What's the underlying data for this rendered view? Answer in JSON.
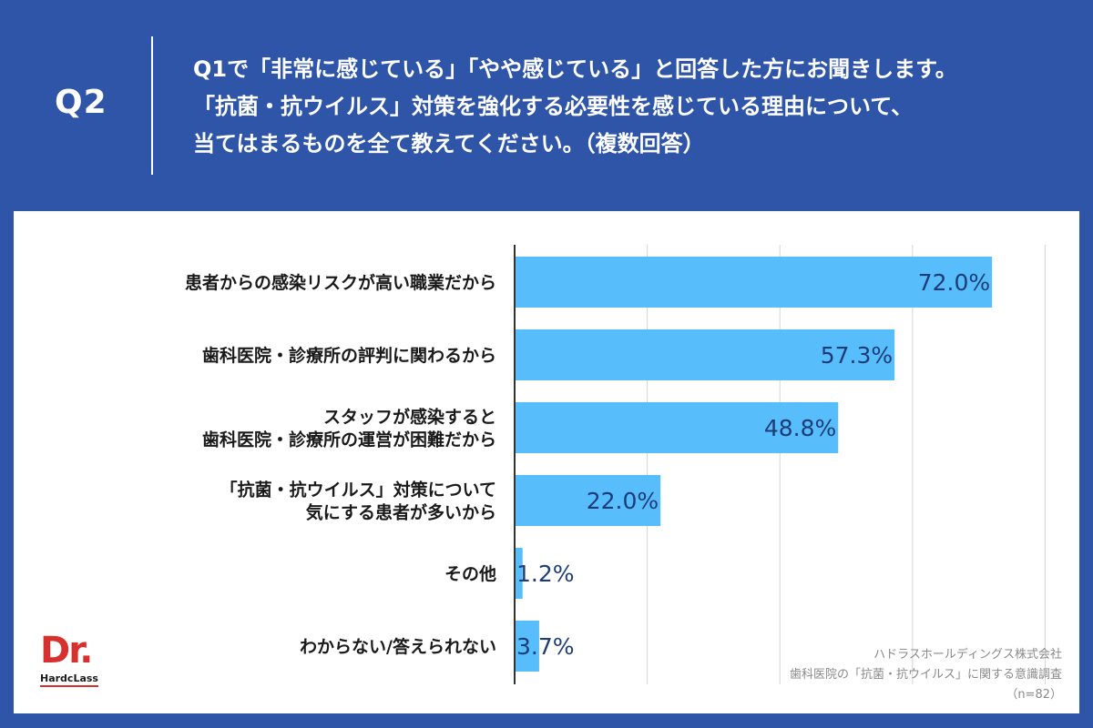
{
  "header": {
    "question_label": "Q2",
    "question_lines": [
      "Q1で「非常に感じている」「やや感じている」と回答した方にお聞きします。",
      "「抗菌・抗ウイルス」対策を強化する必要性を感じている理由について、",
      "当てはまるものを全て教えてください。（複数回答）"
    ]
  },
  "chart_data": {
    "type": "bar",
    "orientation": "horizontal",
    "categories": [
      [
        "患者からの感染リスクが高い職業だから"
      ],
      [
        "歯科医院・診療所の評判に関わるから"
      ],
      [
        "スタッフが感染すると",
        "歯科医院・診療所の運営が困難だから"
      ],
      [
        "「抗菌・抗ウイルス」対策について",
        "気にする患者が多いから"
      ],
      [
        "その他"
      ],
      [
        "わからない/答えられない"
      ]
    ],
    "values": [
      72.0,
      57.3,
      48.8,
      22.0,
      1.2,
      3.7
    ],
    "value_labels": [
      "72.0%",
      "57.3%",
      "48.8%",
      "22.0%",
      "1.2%",
      "3.7%"
    ],
    "xlim": [
      0,
      80
    ],
    "grid": true,
    "bar_color": "#58bdfb",
    "label_color": "#1d3c78"
  },
  "logo": {
    "main": "Dr.",
    "sub": "HardcLass"
  },
  "source": {
    "lines": [
      "ハドラスホールディングス株式会社",
      "歯科医院の「抗菌・抗ウイルス」に関する意識調査",
      "（n=82）"
    ]
  },
  "colors": {
    "background": "#2f55a8",
    "panel": "#ffffff",
    "logo_red": "#d6312e"
  }
}
